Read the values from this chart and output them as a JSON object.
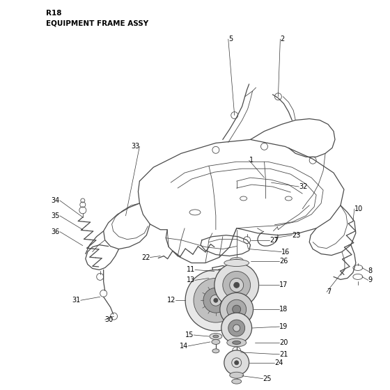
{
  "title_line1": "R18",
  "title_line2": "EQUIPMENT FRAME ASSY",
  "bg": "#ffffff",
  "lc": "#4a4a4a",
  "label_color": "#000000",
  "title_fs": 7.5,
  "label_fs": 7.0,
  "fig_w": 5.6,
  "fig_h": 5.6,
  "dpi": 100
}
